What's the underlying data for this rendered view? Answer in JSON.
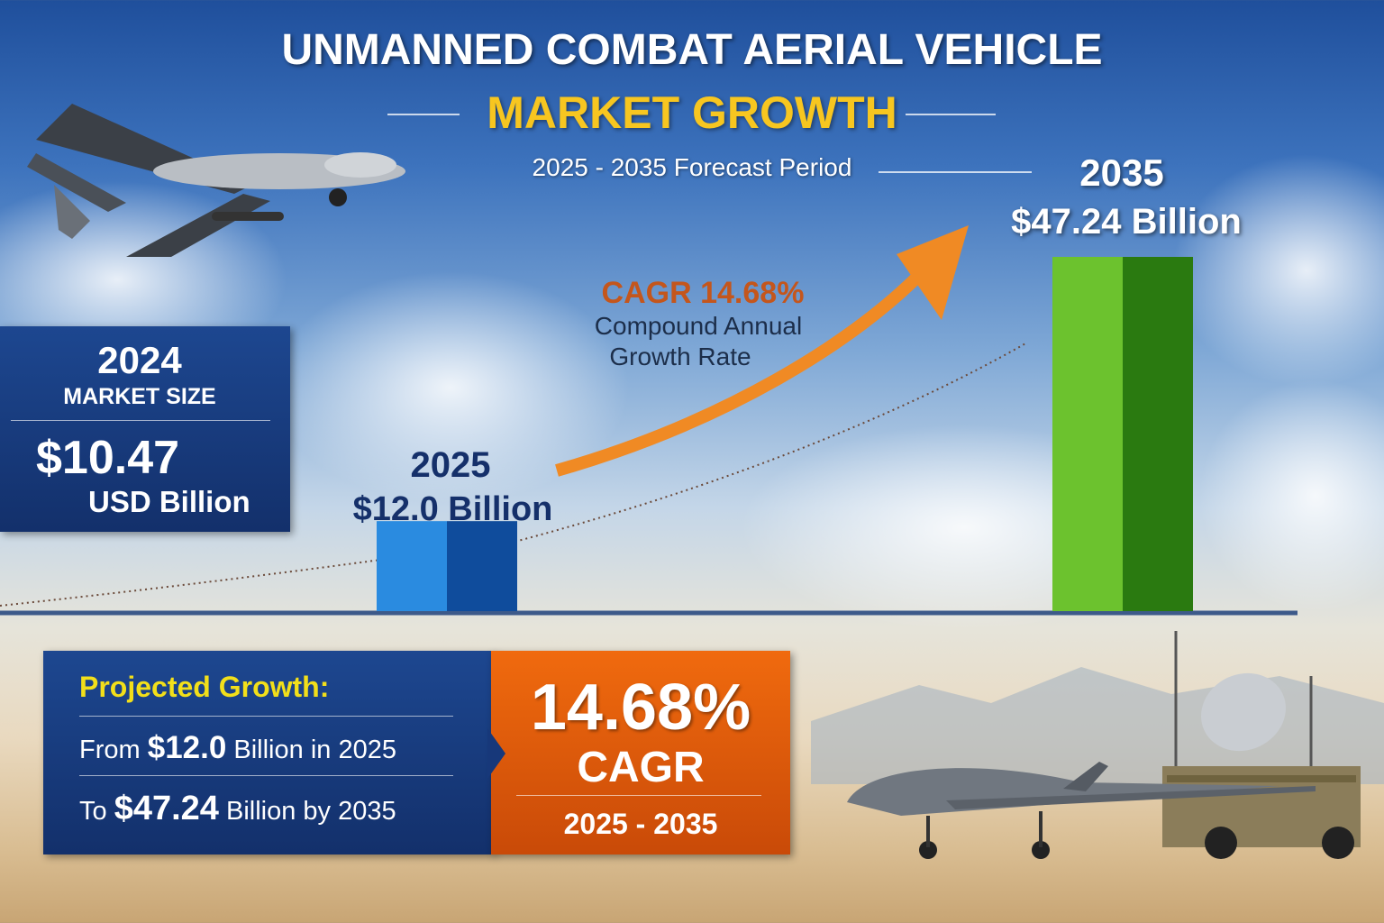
{
  "title": {
    "line1": "UNMANNED COMBAT AERIAL VEHICLE",
    "line2": "MARKET GROWTH",
    "subtitle": "2025 - 2035 Forecast Period"
  },
  "market_2024": {
    "year": "2024",
    "label": "MARKET SIZE",
    "value": "$10.47",
    "unit": "USD Billion"
  },
  "cagr_label": {
    "prefix": "CAGR",
    "value": "14.68%",
    "desc1": "Compound Annual",
    "desc2": "Growth Rate"
  },
  "projected": {
    "heading": "Projected Growth:",
    "from_prefix": "From",
    "from_value": "$12.0",
    "from_suffix": "Billion in 2025",
    "to_prefix": "To",
    "to_value": "$47.24",
    "to_suffix": "Billion by 2035",
    "cagr_value": "14.68%",
    "cagr_label": "CAGR",
    "period": "2025 - 2035"
  },
  "colors": {
    "navy": "#17387a",
    "orange": "#e8620f",
    "yellow": "#f7c620",
    "green": "#4caf1f",
    "blue": "#1f78d1"
  },
  "chart_data": {
    "type": "bar",
    "categories": [
      "2025",
      "2035"
    ],
    "values": [
      12.0,
      47.24
    ],
    "data_labels": [
      "$12.0 Billion",
      "$47.24 Billion"
    ],
    "unit": "USD Billion",
    "ylim": [
      0,
      48
    ],
    "grid": false,
    "annotation": "CAGR 14.68%"
  }
}
